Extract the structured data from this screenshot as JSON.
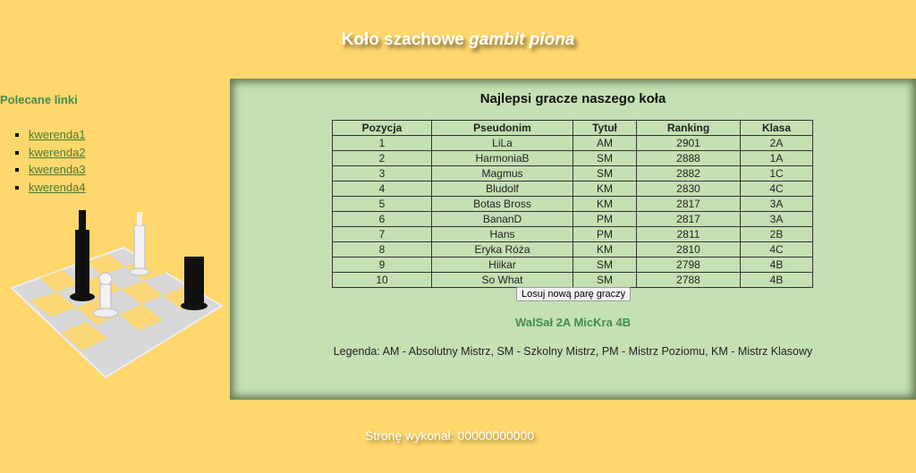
{
  "header": {
    "title_plain": "Koło szachowe ",
    "title_italic": "gambit piona"
  },
  "sidebar": {
    "heading": "Polecane linki",
    "links": [
      "kwerenda1",
      "kwerenda2",
      "kwerenda3",
      "kwerenda4"
    ],
    "image": "chess-pieces-on-board"
  },
  "main": {
    "heading": "Najlepsi gracze naszego koła",
    "columns": [
      "Pozycja",
      "Pseudonim",
      "Tytuł",
      "Ranking",
      "Klasa"
    ],
    "rows": [
      [
        "1",
        "LiLa",
        "AM",
        "2901",
        "2A"
      ],
      [
        "2",
        "HarmoniaB",
        "SM",
        "2888",
        "1A"
      ],
      [
        "3",
        "Magmus",
        "SM",
        "2882",
        "1C"
      ],
      [
        "4",
        "Bludolf",
        "KM",
        "2830",
        "4C"
      ],
      [
        "5",
        "Botas Bross",
        "KM",
        "2817",
        "3A"
      ],
      [
        "6",
        "BananD",
        "PM",
        "2817",
        "3A"
      ],
      [
        "7",
        "Hans",
        "PM",
        "2811",
        "2B"
      ],
      [
        "8",
        "Eryka Róża",
        "KM",
        "2810",
        "4C"
      ],
      [
        "9",
        "Hiikar",
        "SM",
        "2798",
        "4B"
      ],
      [
        "10",
        "So What",
        "SM",
        "2788",
        "4B"
      ]
    ],
    "button_label": "Losuj nową parę graczy",
    "pair": "WalSał 2A MicKra 4B",
    "legend": "Legenda: AM - Absolutny Mistrz, SM - Szkolny Mistrz, PM - Mistrz Poziomu, KM - Mistrz Klasowy"
  },
  "footer": {
    "text": "Stronę wykonał: 00000000000"
  },
  "colors": {
    "background": "#FFD76C",
    "panel": "#C5E0B3",
    "accent_green": "#3E8E55"
  }
}
